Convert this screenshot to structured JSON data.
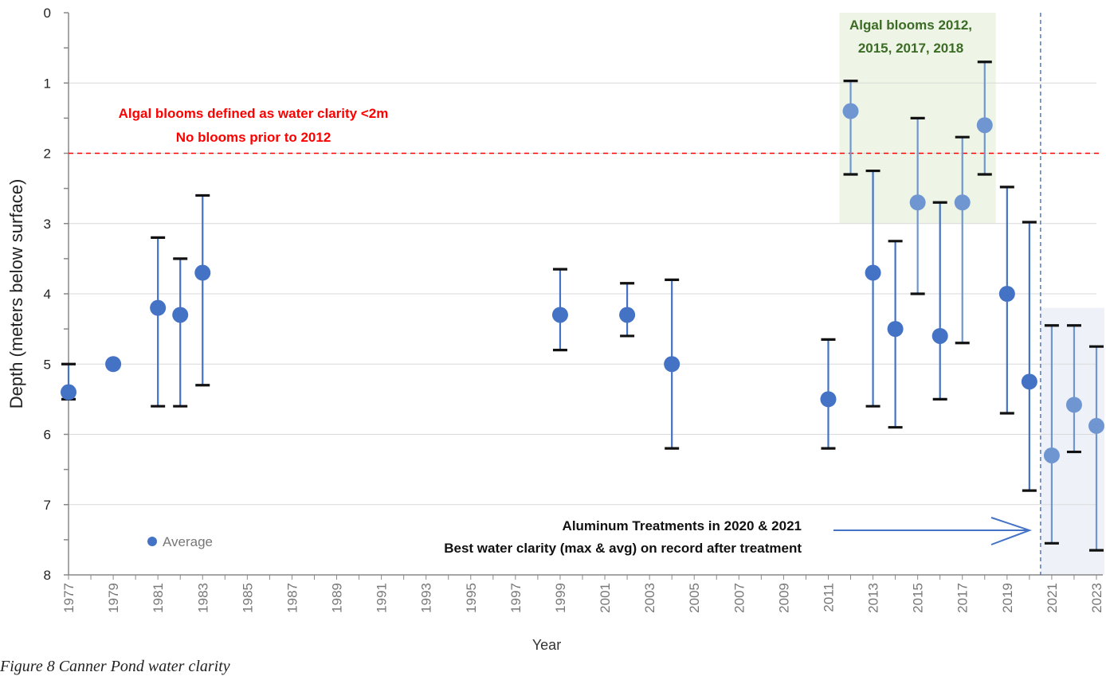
{
  "chart_data": {
    "type": "scatter",
    "title": "",
    "xlabel": "Year",
    "ylabel": "Depth (meters below surface)",
    "ylim": [
      0,
      8
    ],
    "y_inverted": true,
    "y_ticks": [
      "0",
      "1",
      "2",
      "3",
      "4",
      "5",
      "6",
      "7",
      "8"
    ],
    "x_tick_labels": [
      "1977",
      "1979",
      "1981",
      "1983",
      "1985",
      "1987",
      "1989",
      "1991",
      "1993",
      "1995",
      "1997",
      "1999",
      "2001",
      "2003",
      "2005",
      "2007",
      "2009",
      "2011",
      "2013",
      "2015",
      "2017",
      "2019",
      "2021",
      "2023"
    ],
    "xlim": [
      1977,
      2023
    ],
    "grid": "horizontal",
    "legend_label": "Average",
    "legend_position": "bottom-left",
    "threshold_depth": 2,
    "treatment_divider_year": 2020.5,
    "bloom_region_years": [
      2011.5,
      2018.5
    ],
    "bloom_region_depth": [
      0,
      3
    ],
    "post_treatment_region_years": [
      2020.5,
      2023
    ],
    "post_treatment_region_depth": [
      4.2,
      8
    ],
    "colors": {
      "point_dark": "#4472c4",
      "point_light": "#7096d2",
      "threshold": "#ff0000",
      "bloom_region": "#eef5e6",
      "post_region": "#eef2f8",
      "whisker": "#111111",
      "annotation_red": "#ff0000",
      "annotation_green": "#3b6b25",
      "arrow": "#4472c4"
    },
    "points": [
      {
        "year": 1977,
        "avg": 5.4,
        "min": 5.0,
        "max": 5.5,
        "highlight": false
      },
      {
        "year": 1979,
        "avg": 5.0,
        "min": null,
        "max": null,
        "highlight": false
      },
      {
        "year": 1981,
        "avg": 4.2,
        "min": 3.2,
        "max": 5.6,
        "highlight": false
      },
      {
        "year": 1982,
        "avg": 4.3,
        "min": 3.5,
        "max": 5.6,
        "highlight": false
      },
      {
        "year": 1983,
        "avg": 3.7,
        "min": 2.6,
        "max": 5.3,
        "highlight": false
      },
      {
        "year": 1999,
        "avg": 4.3,
        "min": 3.65,
        "max": 4.8,
        "highlight": false
      },
      {
        "year": 2002,
        "avg": 4.3,
        "min": 3.85,
        "max": 4.6,
        "highlight": false
      },
      {
        "year": 2004,
        "avg": 5.0,
        "min": 3.8,
        "max": 6.2,
        "highlight": false
      },
      {
        "year": 2011,
        "avg": 5.5,
        "min": 4.65,
        "max": 6.2,
        "highlight": false
      },
      {
        "year": 2012,
        "avg": 1.4,
        "min": 0.97,
        "max": 2.3,
        "highlight": true
      },
      {
        "year": 2013,
        "avg": 3.7,
        "min": 2.25,
        "max": 5.6,
        "highlight": false
      },
      {
        "year": 2014,
        "avg": 4.5,
        "min": 3.25,
        "max": 5.9,
        "highlight": false
      },
      {
        "year": 2015,
        "avg": 2.7,
        "min": 1.5,
        "max": 4.0,
        "highlight": true
      },
      {
        "year": 2016,
        "avg": 4.6,
        "min": 2.7,
        "max": 5.5,
        "highlight": false
      },
      {
        "year": 2017,
        "avg": 2.7,
        "min": 1.77,
        "max": 4.7,
        "highlight": true
      },
      {
        "year": 2018,
        "avg": 1.6,
        "min": 0.7,
        "max": 2.3,
        "highlight": true
      },
      {
        "year": 2019,
        "avg": 4.0,
        "min": 2.48,
        "max": 5.7,
        "highlight": false
      },
      {
        "year": 2020,
        "avg": 5.25,
        "min": 2.98,
        "max": 6.8,
        "highlight": false
      },
      {
        "year": 2021,
        "avg": 6.3,
        "min": 4.45,
        "max": 7.55,
        "highlight": true
      },
      {
        "year": 2022,
        "avg": 5.58,
        "min": 4.45,
        "max": 6.25,
        "highlight": true
      },
      {
        "year": 2023,
        "avg": 5.88,
        "min": 4.75,
        "max": 7.65,
        "highlight": true
      }
    ],
    "annotations": {
      "threshold_line1": "Algal blooms defined as water clarity <2m",
      "threshold_line2": "No blooms prior to 2012",
      "bloom_line1": "Algal blooms 2012,",
      "bloom_line2": "2015, 2017, 2018",
      "treatment_line1": "Aluminum Treatments in 2020 & 2021",
      "treatment_line2": "Best water clarity (max & avg) on record after treatment"
    }
  },
  "caption": "Figure 8 Canner Pond water clarity"
}
